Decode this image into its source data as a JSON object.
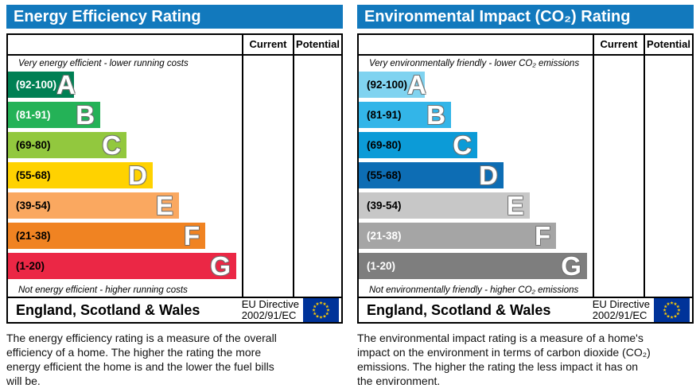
{
  "colors": {
    "header_bg": "#1279bd",
    "header_text": "#ffffff",
    "border": "#000000",
    "flag_bg": "#003399",
    "flag_stars": "#ffcc00"
  },
  "panels": [
    {
      "title": "Energy Efficiency Rating",
      "columns": {
        "current": "Current",
        "potential": "Potential"
      },
      "top_note": "Very energy efficient - lower running costs",
      "bottom_note": "Not energy efficient - higher running costs",
      "bands": [
        {
          "letter": "A",
          "range": "(92-100)",
          "width_pct": 28.2,
          "color": "#008054",
          "text_color": "#ffffff"
        },
        {
          "letter": "B",
          "range": "(81-91)",
          "width_pct": 39.5,
          "color": "#24b257",
          "text_color": "#ffffff"
        },
        {
          "letter": "C",
          "range": "(69-80)",
          "width_pct": 50.7,
          "color": "#92c83e",
          "text_color": "#000000"
        },
        {
          "letter": "D",
          "range": "(55-68)",
          "width_pct": 61.9,
          "color": "#ffd200",
          "text_color": "#000000"
        },
        {
          "letter": "E",
          "range": "(39-54)",
          "width_pct": 73.1,
          "color": "#faa860",
          "text_color": "#000000"
        },
        {
          "letter": "F",
          "range": "(21-38)",
          "width_pct": 84.4,
          "color": "#f08322",
          "text_color": "#000000"
        },
        {
          "letter": "G",
          "range": "(1-20)",
          "width_pct": 97.6,
          "color": "#eb2745",
          "text_color": "#000000"
        }
      ],
      "footer": {
        "region": "England, Scotland & Wales",
        "directive_line1": "EU Directive",
        "directive_line2": "2002/91/EC"
      },
      "description": "The energy efficiency rating is a measure of the overall efficiency of a home. The higher the rating the more energy efficient the home is and the lower the fuel bills will be."
    },
    {
      "title": "Environmental Impact (CO₂) Rating",
      "columns": {
        "current": "Current",
        "potential": "Potential"
      },
      "top_note": "Very environmentally friendly - lower CO₂ emissions",
      "bottom_note": "Not environmentally friendly - higher CO₂ emissions",
      "bands": [
        {
          "letter": "A",
          "range": "(92-100)",
          "width_pct": 28.2,
          "color": "#80d3f0",
          "text_color": "#000000"
        },
        {
          "letter": "B",
          "range": "(81-91)",
          "width_pct": 39.5,
          "color": "#33b5e8",
          "text_color": "#000000"
        },
        {
          "letter": "C",
          "range": "(69-80)",
          "width_pct": 50.7,
          "color": "#0c9bd7",
          "text_color": "#000000"
        },
        {
          "letter": "D",
          "range": "(55-68)",
          "width_pct": 61.9,
          "color": "#0d6db4",
          "text_color": "#000000"
        },
        {
          "letter": "E",
          "range": "(39-54)",
          "width_pct": 73.1,
          "color": "#c7c7c7",
          "text_color": "#000000"
        },
        {
          "letter": "F",
          "range": "(21-38)",
          "width_pct": 84.4,
          "color": "#a5a5a5",
          "text_color": "#ffffff"
        },
        {
          "letter": "G",
          "range": "(1-20)",
          "width_pct": 97.6,
          "color": "#7e7e7e",
          "text_color": "#ffffff"
        }
      ],
      "footer": {
        "region": "England, Scotland & Wales",
        "directive_line1": "EU Directive",
        "directive_line2": "2002/91/EC"
      },
      "description": "The environmental impact rating is a measure of a home's impact on the environment in terms of carbon dioxide (CO₂) emissions. The higher the rating the less impact it has on the environment."
    }
  ],
  "chart_data": [
    {
      "type": "bar",
      "title": "Energy Efficiency Rating",
      "categories": [
        "A",
        "B",
        "C",
        "D",
        "E",
        "F",
        "G"
      ],
      "band_ranges": [
        "92-100",
        "81-91",
        "69-80",
        "55-68",
        "39-54",
        "21-38",
        "1-20"
      ],
      "bar_lengths_pct": [
        28.2,
        39.5,
        50.7,
        61.9,
        73.1,
        84.4,
        97.6
      ],
      "bar_colors": [
        "#008054",
        "#24b257",
        "#92c83e",
        "#ffd200",
        "#faa860",
        "#f08322",
        "#eb2745"
      ],
      "columns": [
        "Current",
        "Potential"
      ],
      "current_value": null,
      "potential_value": null,
      "top_annotation": "Very energy efficient - lower running costs",
      "bottom_annotation": "Not energy efficient - higher running costs",
      "footer": "England, Scotland & Wales — EU Directive 2002/91/EC"
    },
    {
      "type": "bar",
      "title": "Environmental Impact (CO₂) Rating",
      "categories": [
        "A",
        "B",
        "C",
        "D",
        "E",
        "F",
        "G"
      ],
      "band_ranges": [
        "92-100",
        "81-91",
        "69-80",
        "55-68",
        "39-54",
        "21-38",
        "1-20"
      ],
      "bar_lengths_pct": [
        28.2,
        39.5,
        50.7,
        61.9,
        73.1,
        84.4,
        97.6
      ],
      "bar_colors": [
        "#80d3f0",
        "#33b5e8",
        "#0c9bd7",
        "#0d6db4",
        "#c7c7c7",
        "#a5a5a5",
        "#7e7e7e"
      ],
      "columns": [
        "Current",
        "Potential"
      ],
      "current_value": null,
      "potential_value": null,
      "top_annotation": "Very environmentally friendly - lower CO₂ emissions",
      "bottom_annotation": "Not environmentally friendly - higher CO₂ emissions",
      "footer": "England, Scotland & Wales — EU Directive 2002/91/EC"
    }
  ]
}
